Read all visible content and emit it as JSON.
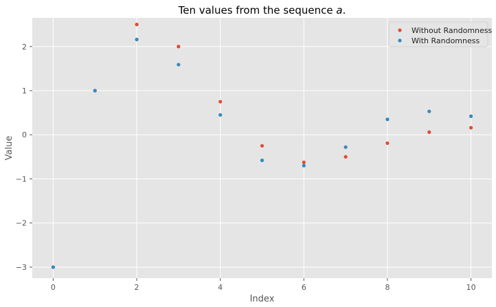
{
  "chart_data": {
    "type": "scatter",
    "title_prefix": "Ten values from the sequence ",
    "title_var": "a",
    "title_suffix": ".",
    "xlabel": "Index",
    "ylabel": "Value",
    "xlim": [
      -0.5,
      10.5
    ],
    "ylim": [
      -3.25,
      2.65
    ],
    "xticks": [
      0,
      2,
      4,
      6,
      8,
      10
    ],
    "yticks": [
      -3,
      -2,
      -1,
      0,
      1,
      2
    ],
    "ytick_labels": [
      "−3",
      "−2",
      "−1",
      "0",
      "1",
      "2"
    ],
    "grid": true,
    "legend_position": "top-right",
    "series": [
      {
        "name": "Without Randomness",
        "color": "#E24A33",
        "x": [
          0,
          1,
          2,
          3,
          4,
          5,
          6,
          7,
          8,
          9,
          10
        ],
        "y": [
          -3.0,
          1.0,
          2.5,
          2.0,
          0.75,
          -0.25,
          -0.625,
          -0.5,
          -0.19,
          0.06,
          0.16
        ]
      },
      {
        "name": "With Randomness",
        "color": "#348ABD",
        "x": [
          0,
          1,
          2,
          3,
          4,
          5,
          6,
          7,
          8,
          9,
          10
        ],
        "y": [
          -3.0,
          1.0,
          2.16,
          1.59,
          0.45,
          -0.58,
          -0.7,
          -0.28,
          0.35,
          0.53,
          0.42
        ]
      }
    ]
  },
  "colors": {
    "plot_background": "#E5E5E5",
    "grid": "#FFFFFF"
  }
}
